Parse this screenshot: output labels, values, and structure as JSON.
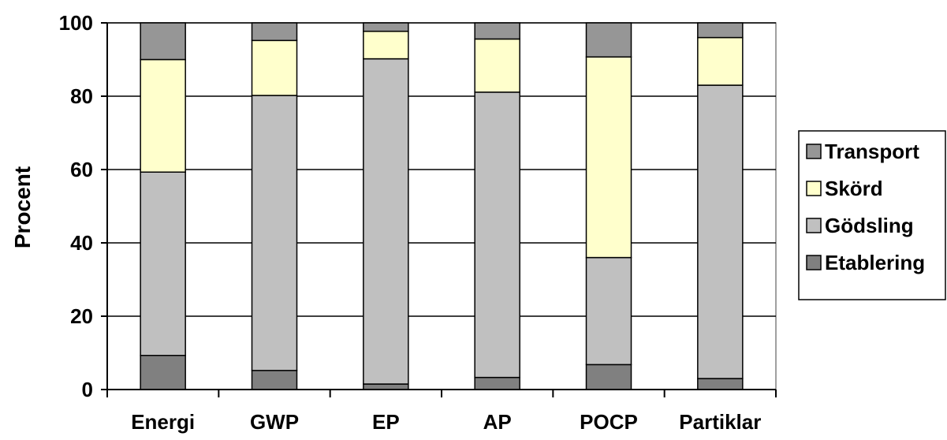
{
  "chart_data": {
    "type": "bar",
    "stacked": true,
    "categories": [
      "Energi",
      "GWP",
      "EP",
      "AP",
      "POCP",
      "Partiklar"
    ],
    "series": [
      {
        "name": "Etablering",
        "values": [
          9.3,
          5.2,
          1.5,
          3.3,
          6.8,
          3.0
        ],
        "color": "#808080"
      },
      {
        "name": "Gödsling",
        "values": [
          50.0,
          75.0,
          88.7,
          77.8,
          29.2,
          80.0
        ],
        "color": "#c0c0c0"
      },
      {
        "name": "Skörd",
        "values": [
          30.7,
          15.0,
          7.5,
          14.5,
          54.7,
          13.0
        ],
        "color": "#ffffcc"
      },
      {
        "name": "Transport",
        "values": [
          10.0,
          4.8,
          2.3,
          4.4,
          9.3,
          4.0
        ],
        "color": "#969696"
      }
    ],
    "legend_order": [
      "Transport",
      "Skörd",
      "Gödsling",
      "Etablering"
    ],
    "yticks": [
      "0",
      "20",
      "40",
      "60",
      "80",
      "100"
    ],
    "ylabel": "Procent",
    "xlabel": "",
    "title": "",
    "ylim": [
      0,
      100
    ],
    "grid": true,
    "legend_position": "right"
  }
}
